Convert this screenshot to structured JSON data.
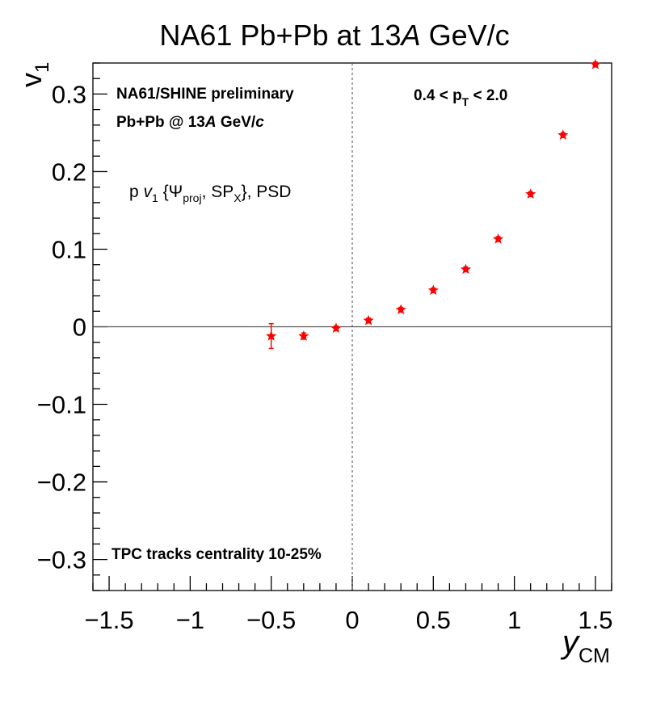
{
  "chart_data": {
    "type": "scatter",
    "title": "NA61 Pb+Pb at 13A GeV/c",
    "title_parts": {
      "pre": "NA61 Pb+Pb at 13",
      "italic": "A",
      "post": " GeV/c"
    },
    "xlabel": {
      "main": "y",
      "sub": "CM"
    },
    "ylabel": {
      "main": "v",
      "sub": "1"
    },
    "xlim": [
      -1.6,
      1.6
    ],
    "ylim": [
      -0.34,
      0.34
    ],
    "x_ticks": [
      "-1.5",
      "-1",
      "-0.5",
      "0",
      "0.5",
      "1",
      "1.5"
    ],
    "y_ticks": [
      "-0.3",
      "-0.2",
      "-0.1",
      "0",
      "0.1",
      "0.2",
      "0.3"
    ],
    "annotations": {
      "preliminary": "NA61/SHINE preliminary",
      "system": {
        "pre": "Pb+Pb @ 13",
        "italic_a": "A",
        "mid": " GeV/",
        "italic_c": "c"
      },
      "method": {
        "p": "p ",
        "v": "v",
        "v_sub": "1",
        "brace": " {Ψ",
        "psi_sub": "proj",
        "sp": ", SP",
        "sp_sub": "X",
        "tail": "}, PSD"
      },
      "pt_range": {
        "pre": "0.4 < p",
        "sub": "T",
        "post": " < 2.0"
      },
      "centrality": "TPC tracks centrality 10-25%"
    },
    "series": [
      {
        "name": "p v1",
        "color": "#ff0000",
        "marker": "star",
        "x": [
          -0.5,
          -0.3,
          -0.1,
          0.1,
          0.3,
          0.5,
          0.7,
          0.9,
          1.1,
          1.3,
          1.5
        ],
        "y": [
          -0.012,
          -0.012,
          -0.002,
          0.008,
          0.022,
          0.047,
          0.074,
          0.113,
          0.171,
          0.247,
          0.338
        ],
        "err": [
          0.016,
          0.004,
          0.003,
          0.003,
          0.003,
          0.003,
          0.003,
          0.003,
          0.003,
          0.003,
          0.003
        ]
      }
    ],
    "grid": false,
    "reference_lines": {
      "y_zero": true,
      "x_zero_dashed": true
    }
  }
}
